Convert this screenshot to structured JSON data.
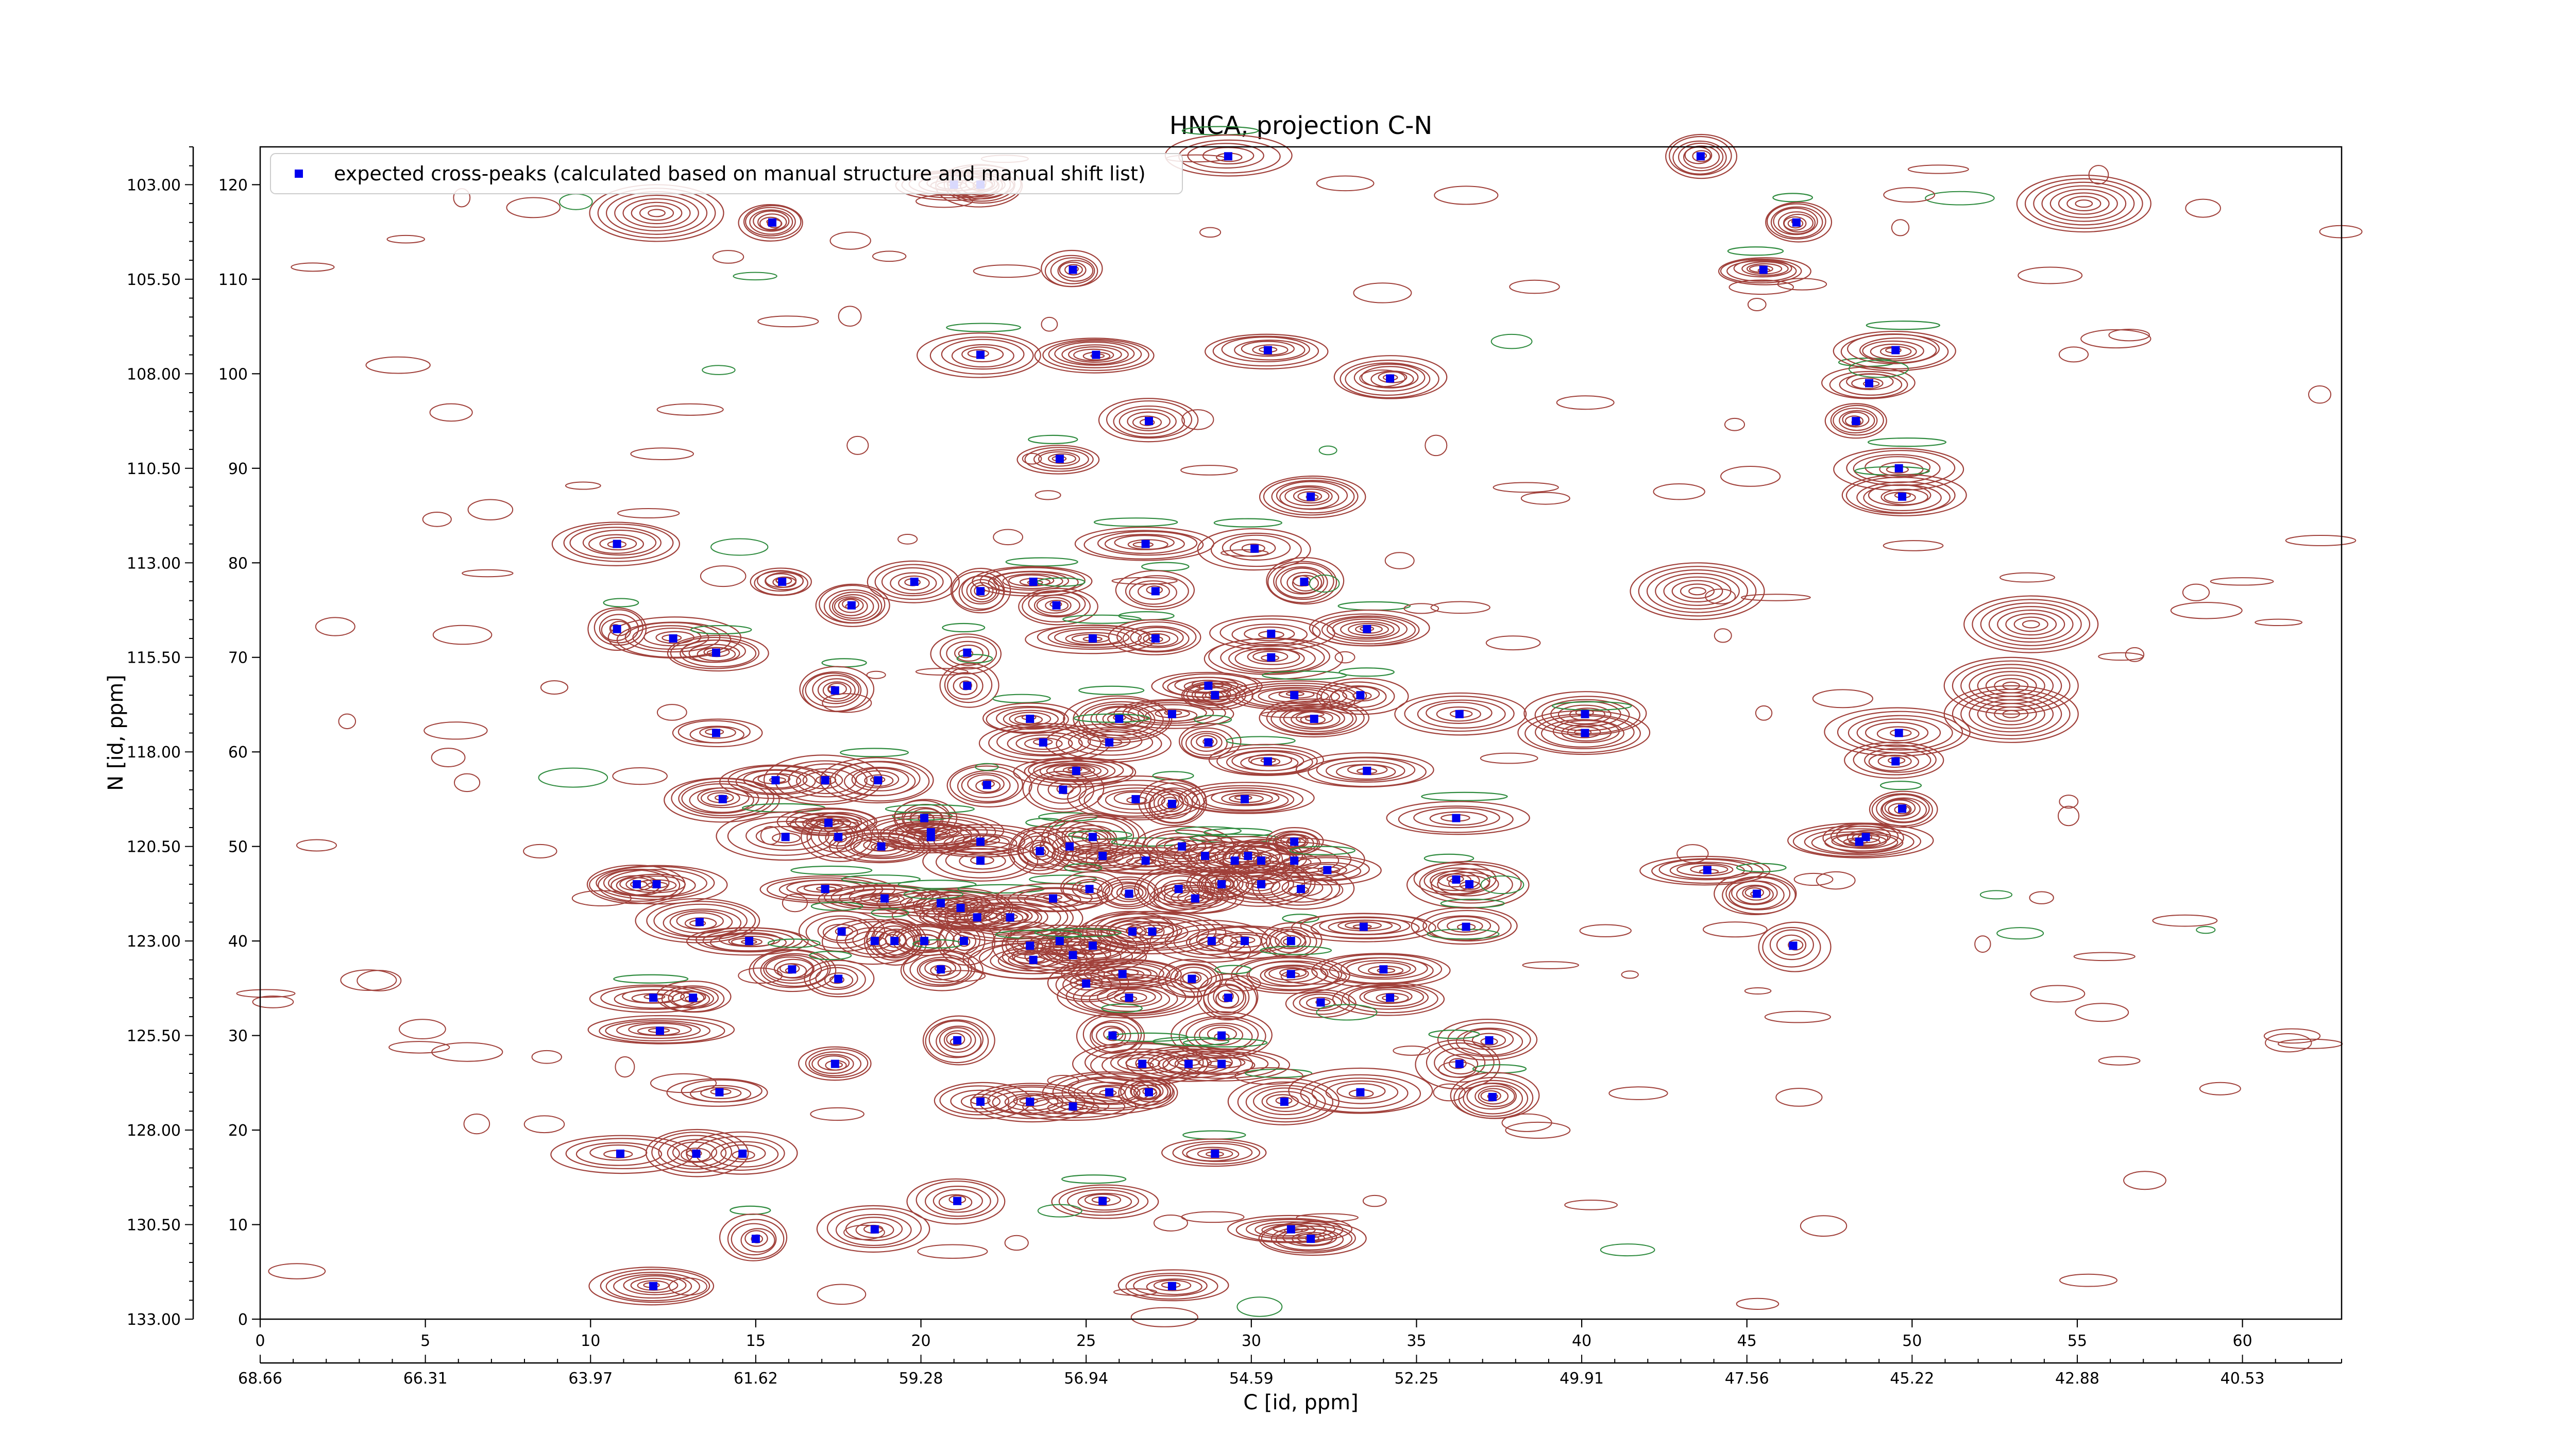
{
  "chart_data": {
    "type": "scatter",
    "title": "HNCA, projection C-N",
    "xlabel": "C [id, ppm]",
    "ylabel": "N [id, ppm]",
    "xlim": [
      0,
      63
    ],
    "ylim": [
      0,
      124
    ],
    "x_index_ticks": [
      "0",
      "5",
      "10",
      "15",
      "20",
      "25",
      "30",
      "35",
      "40",
      "45",
      "50",
      "55",
      "60"
    ],
    "x_index_tick_values": [
      0,
      5,
      10,
      15,
      20,
      25,
      30,
      35,
      40,
      45,
      50,
      55,
      60
    ],
    "x_ppm_ticks": [
      "68.66",
      "66.31",
      "63.97",
      "61.62",
      "59.28",
      "56.94",
      "54.59",
      "52.25",
      "49.91",
      "47.56",
      "45.22",
      "42.88",
      "40.53"
    ],
    "x_ppm_tick_values": [
      0,
      5,
      10,
      15,
      20,
      25,
      30,
      35,
      40,
      45,
      50,
      55,
      60
    ],
    "y_index_ticks": [
      "0",
      "10",
      "20",
      "30",
      "40",
      "50",
      "60",
      "70",
      "80",
      "90",
      "100",
      "110",
      "120"
    ],
    "y_index_tick_values": [
      0,
      10,
      20,
      30,
      40,
      50,
      60,
      70,
      80,
      90,
      100,
      110,
      120
    ],
    "y_ppm_ticks": [
      "133.00",
      "130.50",
      "128.00",
      "125.50",
      "123.00",
      "120.50",
      "118.00",
      "115.50",
      "113.00",
      "110.50",
      "108.00",
      "105.50",
      "103.00"
    ],
    "y_ppm_tick_values": [
      0,
      10,
      20,
      30,
      40,
      50,
      60,
      70,
      80,
      90,
      100,
      110,
      120
    ],
    "legend": {
      "label": "expected cross-peaks (calculated based on manual structure and manual shift list)",
      "position": "upper-left"
    },
    "colors": {
      "positive_contour": "#a0403a",
      "negative_contour": "#2e8b3e",
      "marker": "#0000ee"
    },
    "series": [
      {
        "name": "expected cross-peaks (calculated based on manual structure and manual shift list)",
        "points": [
          [
            21,
            120
          ],
          [
            21.8,
            120
          ],
          [
            29.3,
            123
          ],
          [
            15.5,
            116
          ],
          [
            24.6,
            111
          ],
          [
            43.6,
            123
          ],
          [
            46.5,
            116
          ],
          [
            45.5,
            111
          ],
          [
            21.8,
            102
          ],
          [
            25.3,
            102
          ],
          [
            30.5,
            102.5
          ],
          [
            34.2,
            99.5
          ],
          [
            48.7,
            99
          ],
          [
            49.5,
            102.5
          ],
          [
            26.9,
            95
          ],
          [
            48.3,
            95
          ],
          [
            24.2,
            91
          ],
          [
            49.6,
            90
          ],
          [
            31.8,
            87
          ],
          [
            49.7,
            87
          ],
          [
            10.8,
            82
          ],
          [
            26.8,
            82
          ],
          [
            30.1,
            81.5
          ],
          [
            15.8,
            78
          ],
          [
            19.8,
            78
          ],
          [
            21.8,
            77
          ],
          [
            23.4,
            78
          ],
          [
            17.9,
            75.5
          ],
          [
            24.1,
            75.5
          ],
          [
            27.1,
            77
          ],
          [
            31.6,
            78
          ],
          [
            10.8,
            73
          ],
          [
            12.5,
            72
          ],
          [
            13.8,
            70.5
          ],
          [
            21.4,
            70.5
          ],
          [
            25.2,
            72
          ],
          [
            27.1,
            72
          ],
          [
            30.6,
            72.5
          ],
          [
            30.6,
            70
          ],
          [
            33.5,
            73
          ],
          [
            21.4,
            67
          ],
          [
            17.4,
            66.5
          ],
          [
            28.7,
            67
          ],
          [
            28.9,
            66
          ],
          [
            31.3,
            66
          ],
          [
            33.3,
            66
          ],
          [
            23.3,
            63.5
          ],
          [
            26.0,
            63.5
          ],
          [
            27.6,
            64
          ],
          [
            31.9,
            63.5
          ],
          [
            36.3,
            64
          ],
          [
            40.1,
            64
          ],
          [
            13.8,
            62
          ],
          [
            23.7,
            61
          ],
          [
            25.7,
            61
          ],
          [
            28.7,
            61
          ],
          [
            40.1,
            62
          ],
          [
            49.6,
            62
          ],
          [
            15.6,
            57
          ],
          [
            18.7,
            57
          ],
          [
            22.0,
            56.5
          ],
          [
            24.7,
            58
          ],
          [
            30.5,
            59
          ],
          [
            33.5,
            58
          ],
          [
            49.5,
            59
          ],
          [
            14.0,
            55
          ],
          [
            17.1,
            57
          ],
          [
            20.1,
            53
          ],
          [
            20.3,
            51
          ],
          [
            24.3,
            56
          ],
          [
            26.5,
            55
          ],
          [
            27.6,
            54.5
          ],
          [
            29.8,
            55
          ],
          [
            36.2,
            53
          ],
          [
            49.7,
            54
          ],
          [
            15.9,
            51
          ],
          [
            17.2,
            52.5
          ],
          [
            17.5,
            51
          ],
          [
            18.8,
            50
          ],
          [
            20.3,
            51.5
          ],
          [
            21.8,
            50.5
          ],
          [
            21.8,
            48.5
          ],
          [
            23.6,
            49.5
          ],
          [
            24.5,
            50
          ],
          [
            25.2,
            51
          ],
          [
            25.5,
            49
          ],
          [
            26.8,
            48.5
          ],
          [
            27.9,
            50
          ],
          [
            28.6,
            49
          ],
          [
            29.5,
            48.5
          ],
          [
            29.9,
            49
          ],
          [
            30.3,
            48.5
          ],
          [
            31.3,
            48.5
          ],
          [
            31.3,
            50.5
          ],
          [
            32.3,
            47.5
          ],
          [
            48.4,
            50.5
          ],
          [
            48.6,
            51
          ],
          [
            11.4,
            46
          ],
          [
            12.0,
            46
          ],
          [
            17.1,
            45.5
          ],
          [
            18.9,
            44.5
          ],
          [
            20.6,
            44
          ],
          [
            21.2,
            43.5
          ],
          [
            21.7,
            42.5
          ],
          [
            22.7,
            42.5
          ],
          [
            24.0,
            44.5
          ],
          [
            25.1,
            45.5
          ],
          [
            26.3,
            45
          ],
          [
            27.8,
            45.5
          ],
          [
            28.3,
            44.5
          ],
          [
            29.1,
            46
          ],
          [
            30.3,
            46
          ],
          [
            31.5,
            45.5
          ],
          [
            36.2,
            46.5
          ],
          [
            36.6,
            46
          ],
          [
            43.8,
            47.5
          ],
          [
            45.3,
            45
          ],
          [
            13.3,
            42
          ],
          [
            14.8,
            40
          ],
          [
            17.6,
            41
          ],
          [
            18.6,
            40
          ],
          [
            19.2,
            40
          ],
          [
            20.1,
            40
          ],
          [
            21.3,
            40
          ],
          [
            23.3,
            39.5
          ],
          [
            24.2,
            40
          ],
          [
            25.2,
            39.5
          ],
          [
            26.4,
            41
          ],
          [
            27.0,
            41
          ],
          [
            28.8,
            40
          ],
          [
            29.8,
            40
          ],
          [
            31.2,
            40
          ],
          [
            33.4,
            41.5
          ],
          [
            36.5,
            41.5
          ],
          [
            46.4,
            39.5
          ],
          [
            16.1,
            37
          ],
          [
            17.5,
            36
          ],
          [
            20.6,
            37
          ],
          [
            23.4,
            38
          ],
          [
            24.6,
            38.5
          ],
          [
            26.1,
            36.5
          ],
          [
            28.2,
            36
          ],
          [
            31.2,
            36.5
          ],
          [
            34.0,
            37
          ],
          [
            11.9,
            34
          ],
          [
            13.1,
            34
          ],
          [
            25.0,
            35.5
          ],
          [
            26.3,
            34
          ],
          [
            29.3,
            34
          ],
          [
            32.1,
            33.5
          ],
          [
            34.2,
            34
          ],
          [
            12.1,
            30.5
          ],
          [
            21.1,
            29.5
          ],
          [
            25.8,
            30
          ],
          [
            29.1,
            30
          ],
          [
            37.2,
            29.5
          ],
          [
            17.4,
            27
          ],
          [
            26.7,
            27
          ],
          [
            28.1,
            27
          ],
          [
            29.1,
            27
          ],
          [
            36.3,
            27
          ],
          [
            13.9,
            24
          ],
          [
            21.8,
            23
          ],
          [
            23.3,
            23
          ],
          [
            24.6,
            22.5
          ],
          [
            25.7,
            24
          ],
          [
            26.9,
            24
          ],
          [
            31.0,
            23
          ],
          [
            33.3,
            24
          ],
          [
            37.3,
            23.5
          ],
          [
            10.9,
            17.5
          ],
          [
            13.2,
            17.5
          ],
          [
            14.6,
            17.5
          ],
          [
            28.9,
            17.5
          ],
          [
            21.1,
            12.5
          ],
          [
            25.5,
            12.5
          ],
          [
            15.0,
            8.5
          ],
          [
            18.6,
            9.5
          ],
          [
            31.2,
            9.5
          ],
          [
            31.8,
            8.5
          ],
          [
            11.9,
            3.5
          ],
          [
            27.6,
            3.5
          ]
        ]
      }
    ]
  }
}
